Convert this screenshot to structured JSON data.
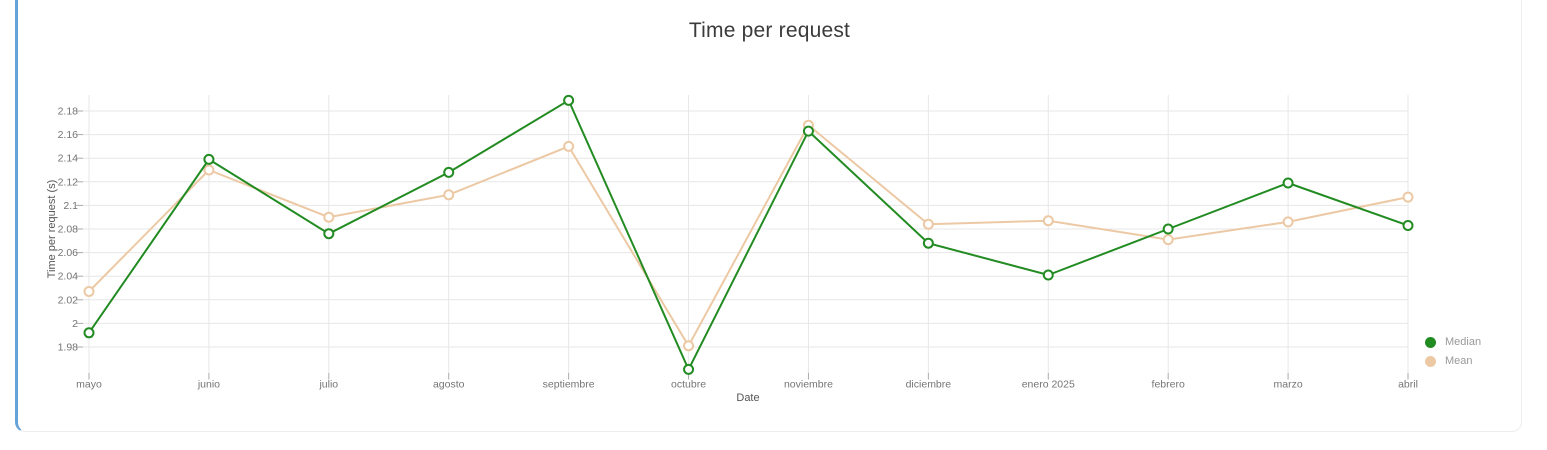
{
  "card": {
    "accent_color": "#64a2d8",
    "border_color": "#ededed"
  },
  "chart_data": {
    "type": "line",
    "title": "Time per request",
    "xlabel": "Date",
    "ylabel": "Time per request (s)",
    "categories": [
      "mayo",
      "junio",
      "julio",
      "agosto",
      "septiembre",
      "octubre",
      "noviembre",
      "diciembre",
      "enero 2025",
      "febrero",
      "marzo",
      "abril"
    ],
    "series": [
      {
        "name": "Median",
        "color": "#228b22",
        "values": [
          1.992,
          2.139,
          2.076,
          2.128,
          2.189,
          1.961,
          2.163,
          2.068,
          2.041,
          2.08,
          2.119,
          2.083
        ]
      },
      {
        "name": "Mean",
        "color": "#ecc9a4",
        "values": [
          2.027,
          2.13,
          2.09,
          2.109,
          2.15,
          1.981,
          2.168,
          2.084,
          2.087,
          2.071,
          2.086,
          2.107
        ]
      }
    ],
    "yticks": {
      "values": [
        1.98,
        2.0,
        2.02,
        2.04,
        2.06,
        2.08,
        2.1,
        2.12,
        2.14,
        2.16,
        2.18
      ],
      "labels": [
        "1.98",
        "2",
        "2.02",
        "2.04",
        "2.06",
        "2.08",
        "2.1",
        "2.12",
        "2.14",
        "2.16",
        "2.18"
      ]
    },
    "ylim": [
      1.955,
      2.195
    ],
    "grid": true,
    "legend_position": "bottom-right",
    "colors": {
      "gridline": "#e7e7e7",
      "tick": "#aaaaaa",
      "tick_label": "#757575",
      "axis_title": "#555555",
      "title": "#3b3b3b",
      "legend_text": "#999999",
      "marker_fill": "#ffffff"
    }
  }
}
